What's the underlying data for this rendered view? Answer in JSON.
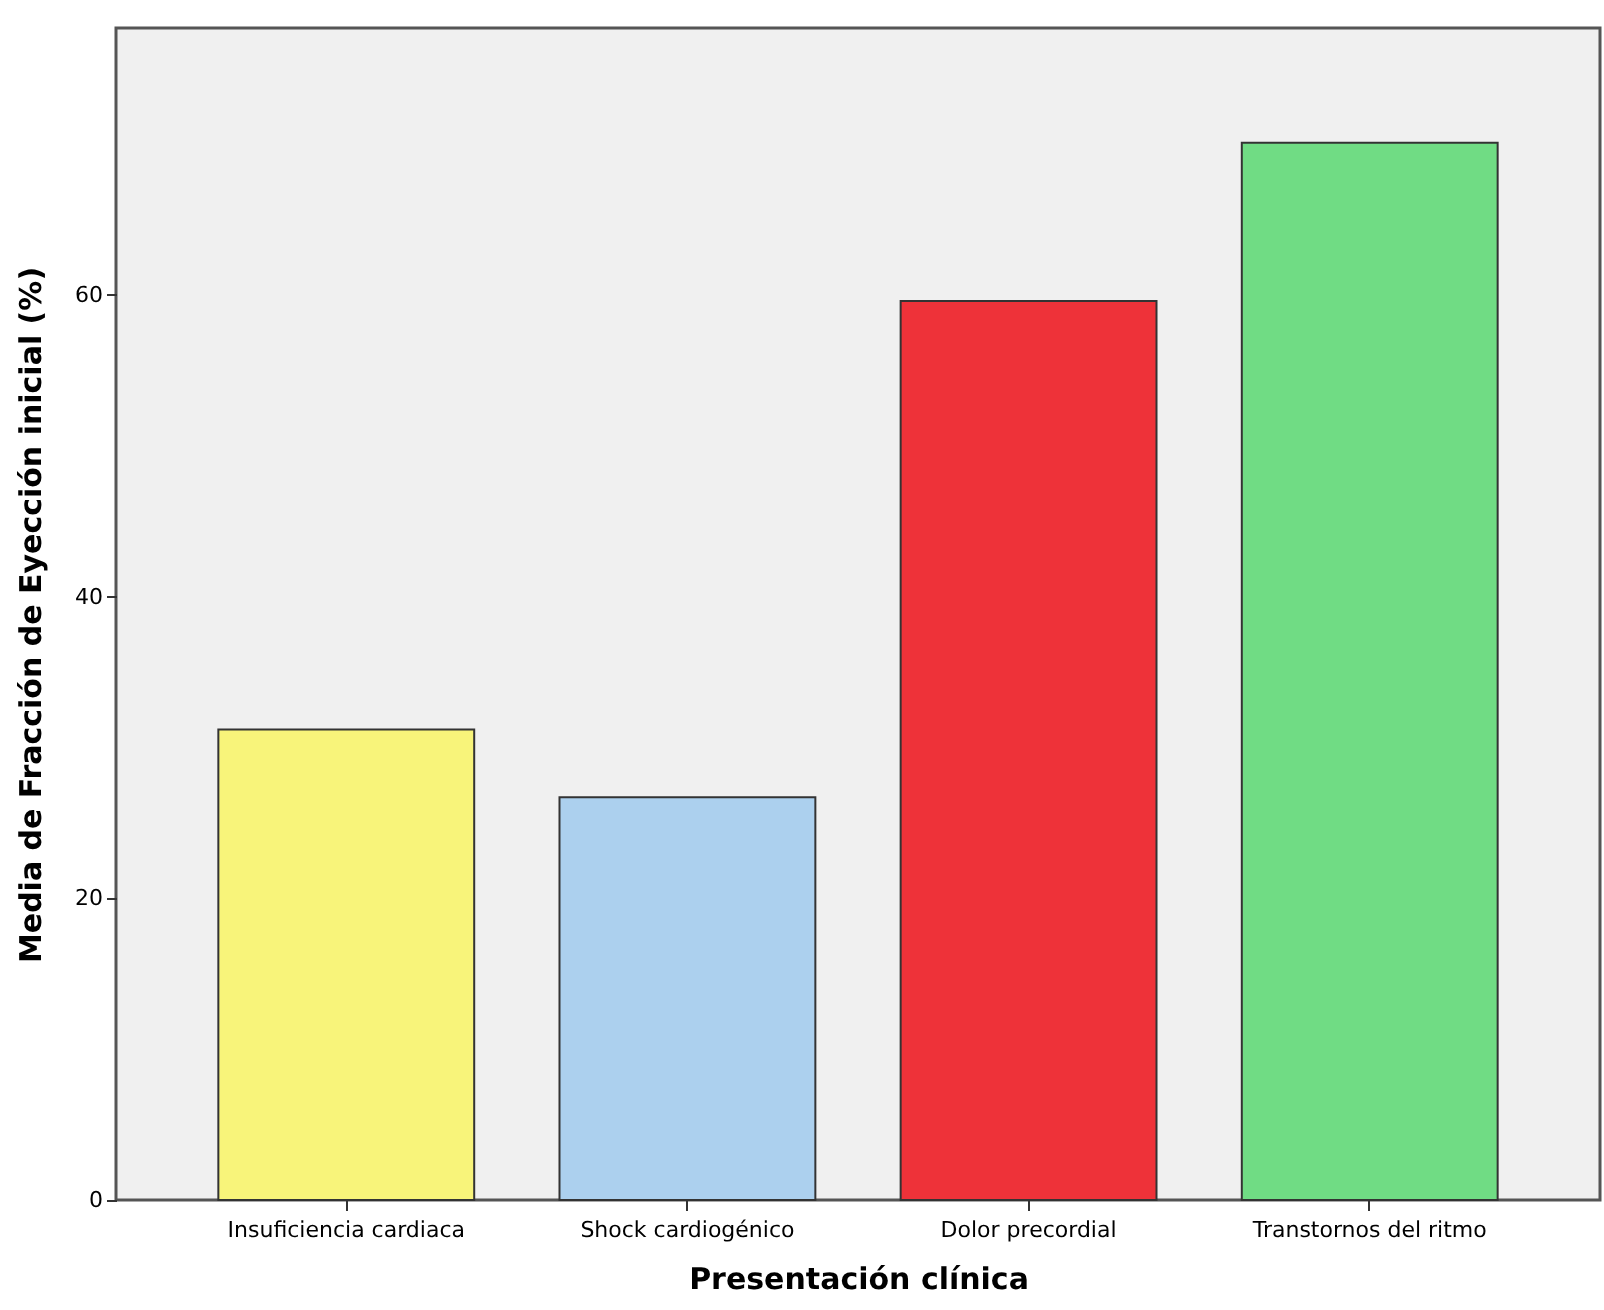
{
  "chart_data": {
    "type": "bar",
    "xlabel": "Presentación clínica",
    "ylabel": "Media de Fracción de Eyección inicial (%)",
    "categories": [
      "Insuficiencia cardiaca",
      "Shock cardiogénico",
      "Dolor precordial",
      "Transtornos del ritmo"
    ],
    "values": [
      31.2,
      26.7,
      59.6,
      70.1
    ],
    "colors": [
      "#f8f47a",
      "#acd0ee",
      "#ee3239",
      "#70dc84"
    ],
    "ylim": [
      0,
      77.7
    ],
    "yticks": [
      0,
      20,
      40,
      60
    ],
    "grid": false
  }
}
